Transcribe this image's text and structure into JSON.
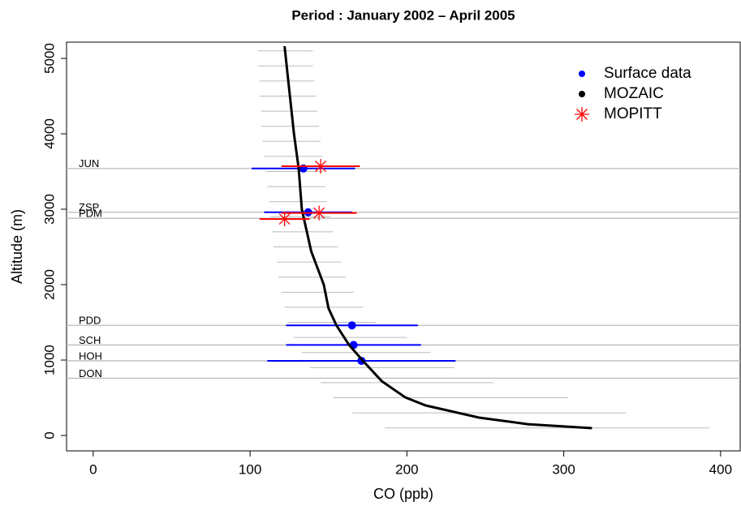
{
  "chart_data": {
    "type": "scatter",
    "title": "Period : January 2002 – April 2005",
    "x_label": "CO (ppb)",
    "y_label": "Altitude (m)",
    "xlim": [
      -17,
      412.5
    ],
    "ylim": [
      -204,
      5215
    ],
    "xticks": [
      0,
      100,
      200,
      300,
      400
    ],
    "yticks": [
      0,
      1000,
      2000,
      3000,
      4000,
      5000
    ],
    "legend": "top-right",
    "sites": {
      "names": [
        "JUN",
        "ZSP",
        "PDM",
        "PDD",
        "SCH",
        "HOH",
        "DON"
      ],
      "altitudes": [
        3540,
        2960,
        2880,
        1460,
        1200,
        990,
        760
      ],
      "colors": [
        "#0000cc",
        "#0000cc",
        "#cc0000",
        "#0000cc",
        "#0000cc",
        "#0000cc",
        "#0000cc"
      ],
      "line_color": "#bbbbbb"
    },
    "mozaic_range": {
      "color": "#bbbbbb",
      "altitudes": [
        100,
        300,
        500,
        700,
        900,
        1100,
        1300,
        1500,
        1700,
        1900,
        2100,
        2300,
        2500,
        2700,
        2900,
        3100,
        3300,
        3500,
        3700,
        3900,
        4100,
        4300,
        4500,
        4700,
        4900,
        5100
      ],
      "low": [
        186,
        165,
        153,
        145,
        138,
        133,
        128,
        124,
        122,
        120,
        118,
        117,
        115,
        114,
        113,
        112,
        111,
        110,
        109,
        108,
        107,
        107,
        106,
        106,
        105,
        105
      ],
      "high": [
        393,
        340,
        303,
        255,
        230,
        215,
        200,
        180,
        172,
        166,
        161,
        158,
        156,
        153,
        151,
        149,
        148,
        147,
        146,
        145,
        144,
        143,
        142,
        141,
        140,
        140
      ]
    },
    "series": [
      {
        "name": "Surface data",
        "color": "#0000ff",
        "marker": "dot",
        "x": [
          134,
          137,
          165,
          166,
          171
        ],
        "y": [
          3540,
          2960,
          1460,
          1200,
          990
        ],
        "xerr": [
          33,
          28,
          42,
          43,
          60
        ]
      },
      {
        "name": "MOZAIC",
        "color": "#000000",
        "marker": "line",
        "x": [
          318,
          277,
          246,
          212,
          199,
          184,
          172,
          163,
          155,
          150,
          147,
          139,
          133,
          131,
          128,
          122
        ],
        "y": [
          97,
          150,
          237,
          398,
          505,
          720,
          989,
          1204,
          1462,
          1688,
          2000,
          2441,
          3000,
          3540,
          4000,
          5161
        ]
      },
      {
        "name": "MOPITT",
        "color": "#ff0000",
        "marker": "asterisk",
        "x": [
          145,
          144,
          122
        ],
        "y": [
          3570,
          2950,
          2870
        ],
        "xerr": [
          25,
          24,
          16
        ]
      }
    ]
  }
}
